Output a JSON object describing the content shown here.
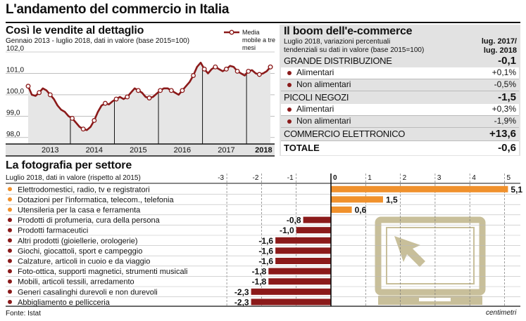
{
  "title": "L'andamento del commercio in Italia",
  "source": "Fonte: Istat",
  "brand": "centimetri",
  "colors": {
    "dark_red": "#8b1a1a",
    "orange": "#f0912c",
    "panel": "#e2e2e2",
    "bar_bg": "#d4d4d4",
    "icon": "#c8bf9a"
  },
  "retail_chart": {
    "title": "Così le vendite al dettaglio",
    "subtitle": "Gennaio 2013 - luglio 2018, dati in valore (base 2015=100)",
    "legend": "Media mobile a tre mesi",
    "chart_data": {
      "type": "line",
      "title": "Così le vendite al dettaglio",
      "ylim": [
        97.7,
        102.0
      ],
      "yticks": [
        "102,0",
        "101,0",
        "100,0",
        "99,0",
        "98,0"
      ],
      "ytick_values": [
        102.0,
        101.0,
        100.0,
        99.0,
        98.0
      ],
      "years": [
        "2013",
        "2014",
        "2015",
        "2016",
        "2017",
        "2018"
      ],
      "x": [
        "2013-01",
        "2013-02",
        "2013-03",
        "2013-04",
        "2013-05",
        "2013-06",
        "2013-07",
        "2013-08",
        "2013-09",
        "2013-10",
        "2013-11",
        "2013-12",
        "2014-01",
        "2014-02",
        "2014-03",
        "2014-04",
        "2014-05",
        "2014-06",
        "2014-07",
        "2014-08",
        "2014-09",
        "2014-10",
        "2014-11",
        "2014-12",
        "2015-01",
        "2015-02",
        "2015-03",
        "2015-04",
        "2015-05",
        "2015-06",
        "2015-07",
        "2015-08",
        "2015-09",
        "2015-10",
        "2015-11",
        "2015-12",
        "2016-01",
        "2016-02",
        "2016-03",
        "2016-04",
        "2016-05",
        "2016-06",
        "2016-07",
        "2016-08",
        "2016-09",
        "2016-10",
        "2016-11",
        "2016-12",
        "2017-01",
        "2017-02",
        "2017-03",
        "2017-04",
        "2017-05",
        "2017-06",
        "2017-07",
        "2017-08",
        "2017-09",
        "2017-10",
        "2017-11",
        "2017-12",
        "2018-01",
        "2018-02",
        "2018-03",
        "2018-04",
        "2018-05",
        "2018-06",
        "2018-07"
      ],
      "values": [
        100.4,
        100.0,
        99.95,
        100.1,
        100.3,
        100.2,
        100.0,
        99.8,
        99.5,
        99.3,
        99.2,
        99.0,
        98.9,
        98.7,
        98.5,
        98.4,
        98.35,
        98.5,
        98.8,
        99.2,
        99.5,
        99.6,
        99.55,
        99.7,
        99.8,
        99.9,
        99.8,
        99.9,
        100.1,
        100.3,
        100.2,
        100.1,
        99.9,
        99.85,
        99.9,
        100.05,
        100.2,
        100.3,
        100.3,
        100.2,
        100.1,
        100.0,
        100.2,
        100.4,
        100.6,
        100.9,
        101.3,
        101.5,
        101.2,
        101.0,
        101.2,
        101.3,
        101.2,
        101.1,
        101.2,
        101.35,
        101.3,
        101.1,
        101.0,
        100.9,
        101.1,
        101.15,
        101.0,
        100.95,
        101.0,
        101.1,
        101.3
      ],
      "markers": [
        0,
        3,
        6,
        12,
        15,
        18,
        21,
        24,
        27,
        30,
        33,
        36,
        39,
        42,
        45,
        48,
        51,
        54,
        57,
        60,
        63,
        66
      ]
    }
  },
  "ecommerce": {
    "title": "Il boom dell'e-commerce",
    "subtitle_1": "Luglio 2018, variazioni percentuali",
    "subtitle_2": "tendenziali su dati in valore (base 2015=100)",
    "col_header_1": "lug. 2017/",
    "col_header_2": "lug. 2018",
    "rows": [
      {
        "label": "GRANDE DISTRIBUZIONE",
        "value": "-0,1",
        "kind": "group"
      },
      {
        "label": "Alimentari",
        "value": "+0,1%",
        "kind": "item"
      },
      {
        "label": "Non alimentari",
        "value": "-0,5%",
        "kind": "item"
      },
      {
        "label": "PICOLI NEGOZI",
        "value": "-1,5",
        "kind": "group"
      },
      {
        "label": "Alimentari",
        "value": "+0,3%",
        "kind": "item"
      },
      {
        "label": "Non alimentari",
        "value": "-1,9%",
        "kind": "item"
      },
      {
        "label": "COMMERCIO ELETTRONICO",
        "value": "+13,6",
        "kind": "group"
      },
      {
        "label": "TOTALE",
        "value": "-0,6",
        "kind": "total"
      }
    ]
  },
  "sector": {
    "title": "La fotografia per settore",
    "subtitle": "Luglio 2018, dati in valore (rispetto al 2015)",
    "chart_data": {
      "type": "bar",
      "orientation": "horizontal",
      "title": "La fotografia per settore",
      "xlim": [
        -3.5,
        5.5
      ],
      "xticks": [
        -3,
        -2,
        -1,
        0,
        1,
        2,
        3,
        4,
        5
      ],
      "xtick_labels": [
        "-3",
        "-2",
        "-1",
        "0",
        "1",
        "2",
        "3",
        "4",
        "5"
      ],
      "categories": [
        "Elettrodomestici, radio, tv e registratori",
        "Dotazioni per l'informatica, telecom., telefonia",
        "Utensileria per la casa e ferramenta",
        "Prodotti di profumeria, cura della persona",
        "Prodotti farmaceutici",
        "Altri prodotti (gioiellerie, orologerie)",
        "Giochi, giocattoli, sport e campeggio",
        "Calzature, articoli in cuoio e da viaggio",
        "Foto-ottica, supporti magnetici, strumenti musicali",
        "Mobili, articoli tessili, arredamento",
        "Generi casalinghi durevoli e non durevoli",
        "Abbigliamento e pellicceria"
      ],
      "values": [
        5.1,
        1.5,
        0.6,
        -0.8,
        -1.0,
        -1.6,
        -1.6,
        -1.6,
        -1.8,
        -1.8,
        -2.3,
        -2.3
      ],
      "value_labels": [
        "5,1",
        "1,5",
        "0,6",
        "-0,8",
        "-1,0",
        "-1,6",
        "-1,6",
        "-1,6",
        "-1,8",
        "-1,8",
        "-2,3",
        "-2,3"
      ]
    }
  }
}
